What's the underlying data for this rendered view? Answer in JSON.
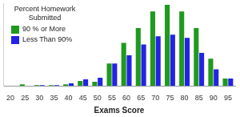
{
  "chart_data": {
    "type": "bar",
    "legend_title": "Percent Homework Submitted",
    "x_label": "Exams Score",
    "categories": [
      20,
      25,
      30,
      35,
      40,
      45,
      50,
      55,
      60,
      65,
      70,
      75,
      80,
      85,
      90,
      95
    ],
    "series": [
      {
        "name": "90 % or More",
        "color": "#1f9a1f",
        "values": [
          0,
          2,
          1,
          1,
          2,
          6,
          5,
          27,
          52,
          70,
          90,
          98,
          90,
          70,
          33,
          9
        ]
      },
      {
        "name": "Less Than 90%",
        "color": "#2323e6",
        "values": [
          0,
          0,
          1,
          1,
          3,
          8,
          10,
          27,
          37,
          50,
          60,
          62,
          58,
          40,
          20,
          9
        ]
      }
    ],
    "ylim": [
      0,
      100
    ],
    "grid": false,
    "legend": "upper left",
    "tick_labels": "x"
  }
}
